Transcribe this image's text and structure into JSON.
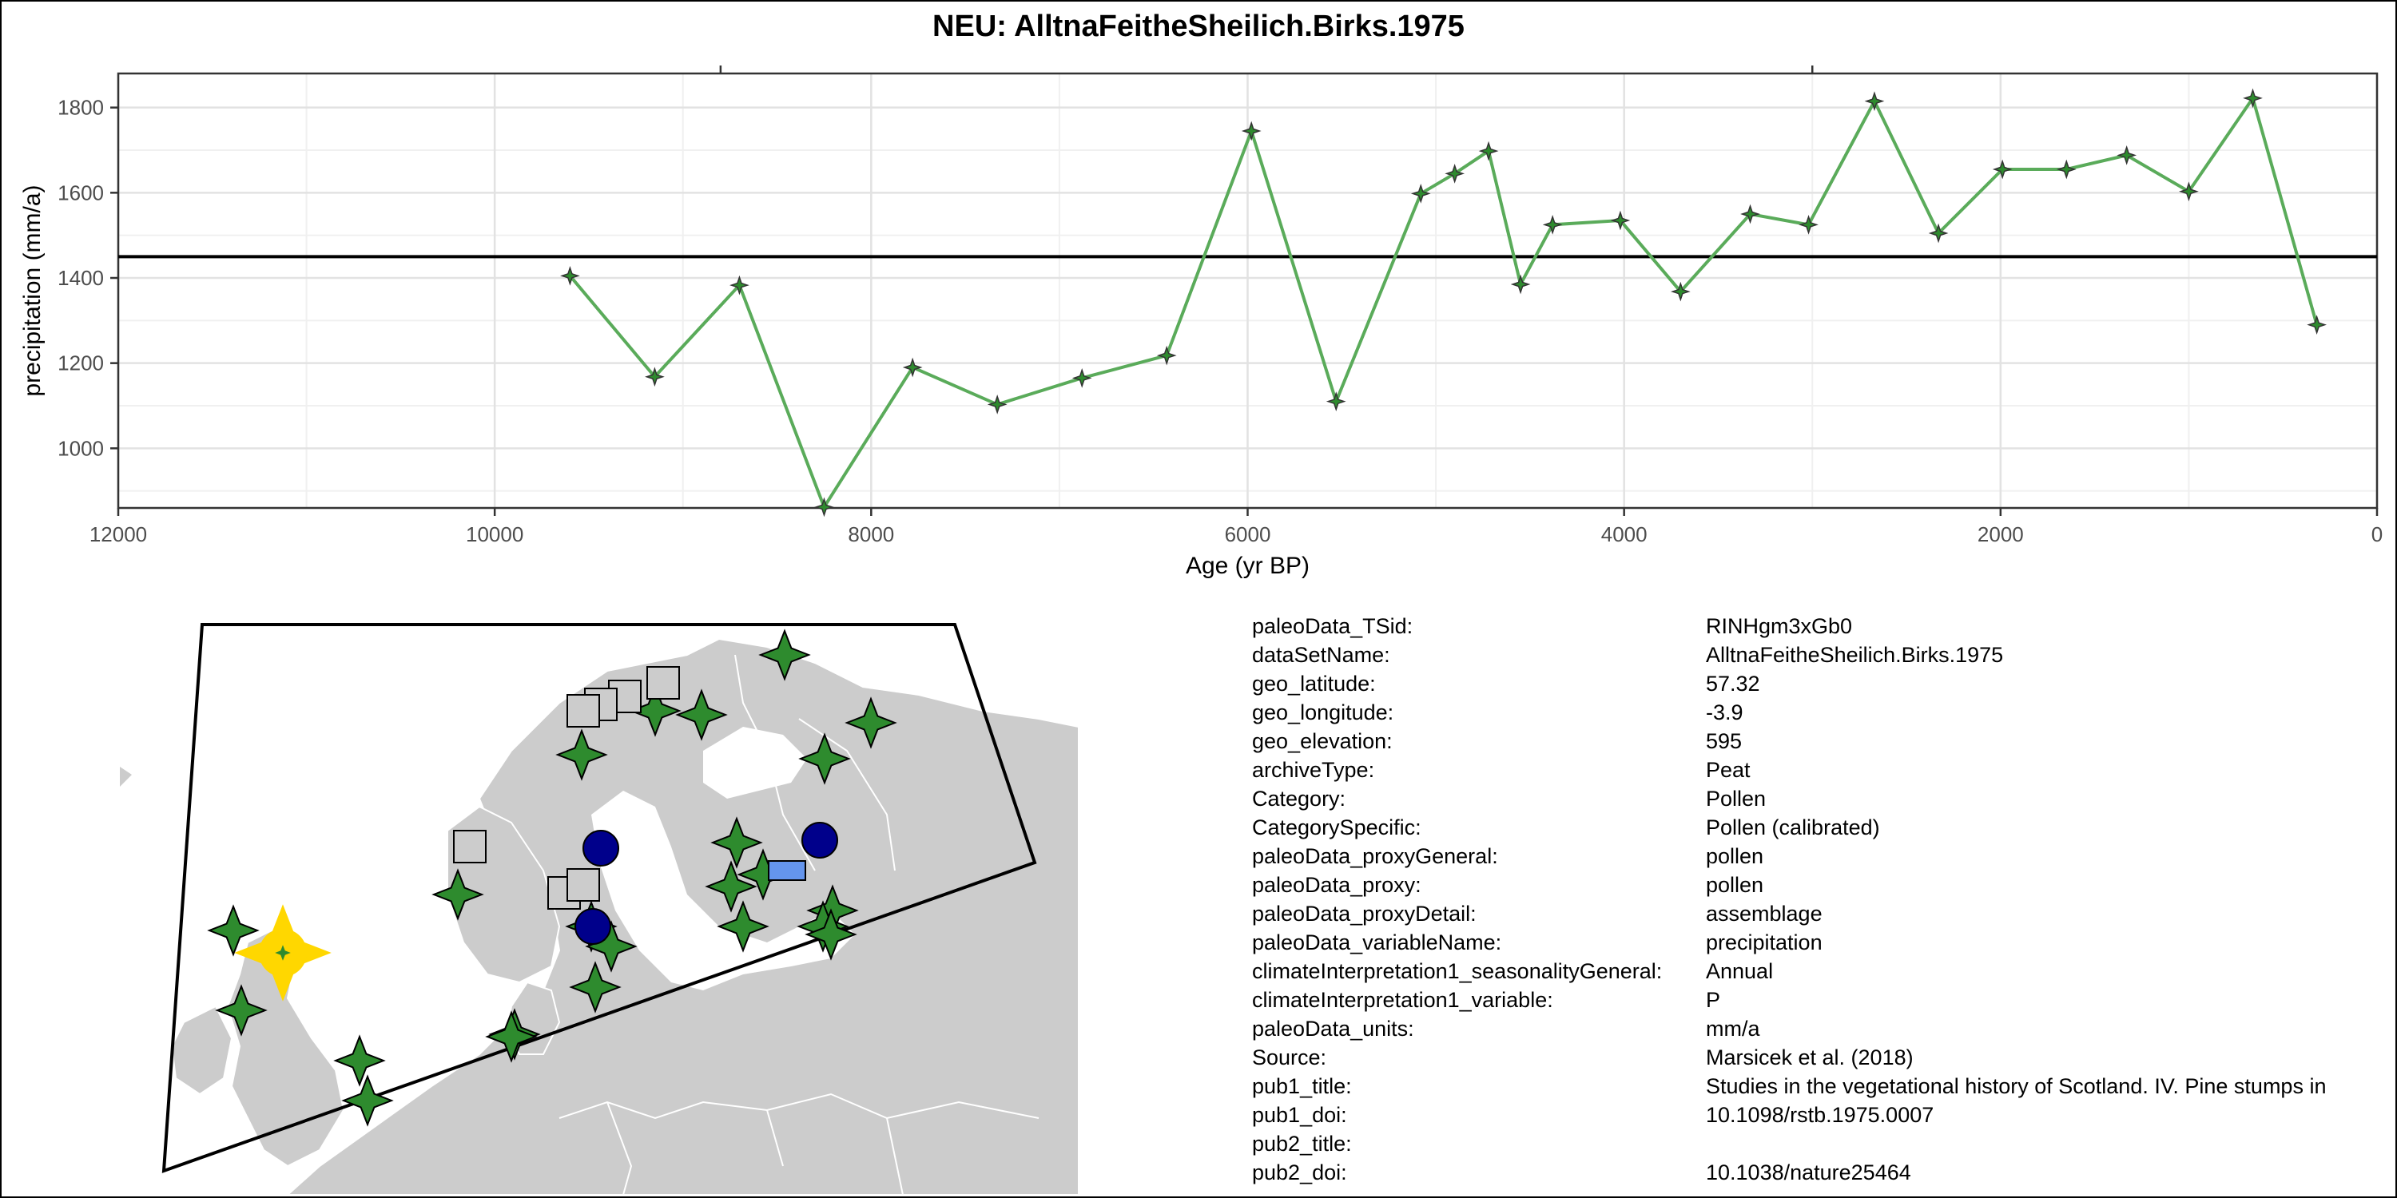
{
  "chart_data": {
    "type": "line",
    "title": "NEU: AlltnaFeitheSheilich.Birks.1975",
    "xlabel": "Age (yr BP)",
    "ylabel": "precipitation (mm/a)",
    "xlim": [
      12000,
      0
    ],
    "ylim": [
      860,
      1880
    ],
    "x_ticks": [
      "12000",
      "10000",
      "8000",
      "6000",
      "4000",
      "2000",
      "0"
    ],
    "y_ticks": [
      "1000",
      "1200",
      "1400",
      "1600",
      "1800"
    ],
    "reference_line_y": 1450,
    "grid": true,
    "series": [
      {
        "color": "#5aab5a",
        "marker": "four-point-star",
        "x": [
          9600,
          9150,
          8700,
          8250,
          7780,
          7330,
          6880,
          6430,
          5980,
          5530,
          5080,
          4900,
          4720,
          4550,
          4380,
          4020,
          3700,
          3330,
          3020,
          2670,
          2330,
          1990,
          1650,
          1330,
          1000,
          660,
          320
        ],
        "y": [
          1405,
          1168,
          1383,
          862,
          1190,
          1103,
          1165,
          1218,
          1745,
          1110,
          1598,
          1645,
          1698,
          1385,
          1525,
          1535,
          1368,
          1550,
          1525,
          1815,
          1505,
          1655,
          1655,
          1688,
          1603,
          1822,
          1290
        ]
      }
    ]
  },
  "map": {
    "land_color": "#cccccc",
    "markers": [
      {
        "shape": "star-large",
        "color": "#ffd700",
        "label": "selected site"
      },
      {
        "shape": "star",
        "color": "#2e8b2e"
      },
      {
        "shape": "square",
        "color": "#cccccc"
      },
      {
        "shape": "circle",
        "color": "#00008b"
      },
      {
        "shape": "rectangle",
        "color": "#6495ed"
      }
    ]
  },
  "metadata": [
    {
      "key": "paleoData_TSid:",
      "value": "RINHgm3xGb0"
    },
    {
      "key": "dataSetName:",
      "value": "AlltnaFeitheSheilich.Birks.1975"
    },
    {
      "key": "geo_latitude:",
      "value": "57.32"
    },
    {
      "key": "geo_longitude:",
      "value": "-3.9"
    },
    {
      "key": "geo_elevation:",
      "value": "595"
    },
    {
      "key": "archiveType:",
      "value": "Peat"
    },
    {
      "key": "Category:",
      "value": "Pollen"
    },
    {
      "key": "CategorySpecific:",
      "value": "Pollen (calibrated)"
    },
    {
      "key": "paleoData_proxyGeneral:",
      "value": "pollen"
    },
    {
      "key": "paleoData_proxy:",
      "value": "pollen"
    },
    {
      "key": "paleoData_proxyDetail:",
      "value": "assemblage"
    },
    {
      "key": "paleoData_variableName:",
      "value": "precipitation"
    },
    {
      "key": "climateInterpretation1_seasonalityGeneral:",
      "value": "Annual"
    },
    {
      "key": "climateInterpretation1_variable:",
      "value": "P"
    },
    {
      "key": "paleoData_units:",
      "value": "mm/a"
    },
    {
      "key": "Source:",
      "value": "Marsicek et al. (2018)"
    },
    {
      "key": "pub1_title:",
      "value": "Studies in the vegetational history of Scotland. IV. Pine stumps in"
    },
    {
      "key": "pub1_doi:",
      "value": "10.1098/rstb.1975.0007"
    },
    {
      "key": "pub2_title:",
      "value": ""
    },
    {
      "key": "pub2_doi:",
      "value": "10.1038/nature25464"
    }
  ]
}
